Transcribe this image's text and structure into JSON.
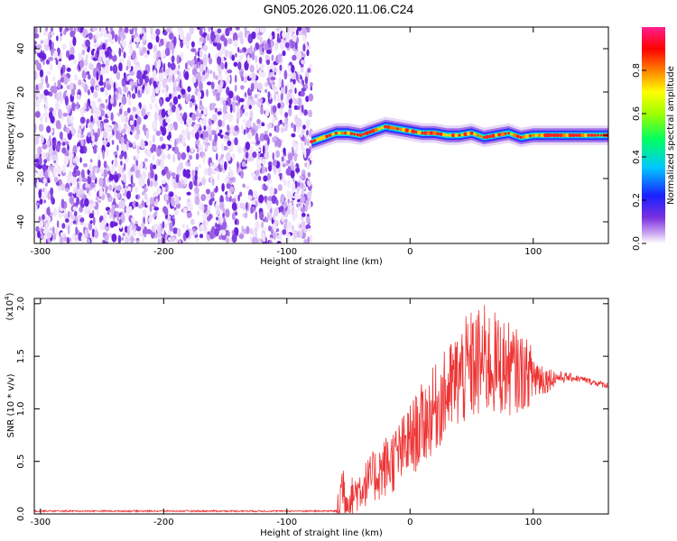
{
  "title": "GN05.2026.020.11.06.C24",
  "chart_data": [
    {
      "type": "heatmap",
      "xlabel": "Height of straight line (km)",
      "ylabel": "Frequency (Hz)",
      "xlim": [
        -305,
        161
      ],
      "ylim": [
        -50,
        50
      ],
      "xticks": [
        -300,
        -200,
        -100,
        0,
        100
      ],
      "yticks": [
        -40,
        -20,
        0,
        20,
        40
      ],
      "noise_region_x": [
        -305,
        -80
      ],
      "ridge": {
        "x": [
          -80,
          -70,
          -60,
          -50,
          -40,
          -30,
          -20,
          -10,
          0,
          10,
          20,
          30,
          40,
          50,
          60,
          70,
          80,
          90,
          100,
          110,
          120,
          130,
          140,
          150,
          161
        ],
        "freq": [
          -3,
          -1,
          1,
          1,
          0,
          2,
          4,
          3,
          2,
          1,
          1,
          0,
          0,
          1,
          -1,
          0,
          1,
          -1,
          0,
          0,
          0,
          0,
          0,
          0,
          0
        ]
      },
      "colorbar": {
        "label": "Normalized spectral amplitude",
        "range": [
          0,
          1
        ],
        "ticks": [
          "0.0",
          "0.2",
          "0.4",
          "0.6",
          "0.8"
        ]
      }
    },
    {
      "type": "line",
      "xlabel": "Height of straight line (km)",
      "ylabel": "SNR (10 * v/v)",
      "y_scale_label": "(x10",
      "y_scale_exp": "4",
      "xlim": [
        -305,
        161
      ],
      "ylim": [
        0,
        2.05
      ],
      "xticks": [
        -300,
        -200,
        -100,
        0,
        100
      ],
      "yticks": [
        "0.0",
        "0.5",
        "1.0",
        "1.5",
        "2.0"
      ],
      "series": [
        {
          "name": "SNR",
          "color": "#ee3333",
          "x": [
            -305,
            -100,
            -80,
            -60,
            -57,
            -55,
            -52,
            -50,
            -45,
            -40,
            -35,
            -30,
            -25,
            -20,
            -15,
            -10,
            -5,
            0,
            10,
            20,
            30,
            40,
            50,
            60,
            70,
            80,
            90,
            100,
            110,
            120,
            130,
            140,
            150,
            161
          ],
          "y": [
            0.02,
            0.02,
            0.02,
            0.02,
            0.1,
            0.3,
            0.15,
            0.1,
            0.2,
            0.25,
            0.3,
            0.35,
            0.4,
            0.45,
            0.5,
            0.55,
            0.62,
            0.7,
            0.85,
            1.0,
            1.15,
            1.3,
            1.4,
            1.45,
            1.42,
            1.38,
            1.35,
            1.32,
            1.28,
            1.3,
            1.3,
            1.28,
            1.25,
            1.22
          ],
          "spread": [
            0,
            0,
            0,
            0,
            0.3,
            0.3,
            0.25,
            0.2,
            0.2,
            0.22,
            0.22,
            0.25,
            0.28,
            0.3,
            0.32,
            0.32,
            0.34,
            0.36,
            0.4,
            0.42,
            0.44,
            0.5,
            0.55,
            0.55,
            0.5,
            0.45,
            0.38,
            0.28,
            0.14,
            0.06,
            0.04,
            0.03,
            0.03,
            0.03
          ]
        }
      ]
    }
  ]
}
